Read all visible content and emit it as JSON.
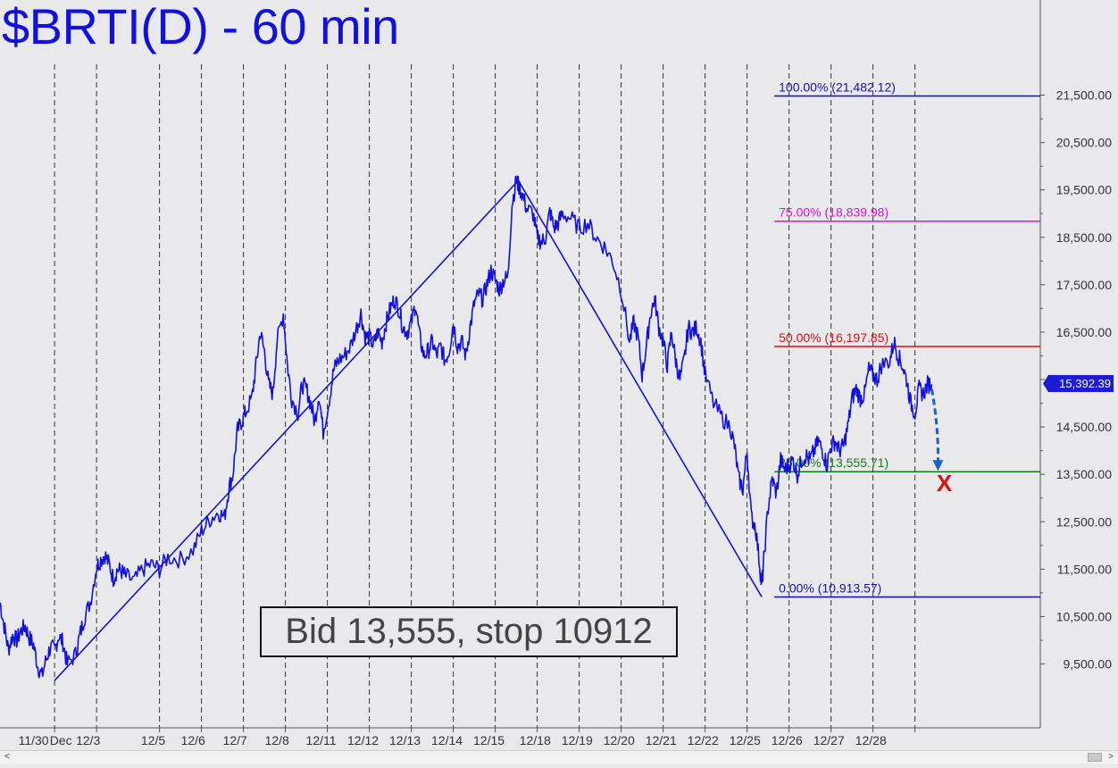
{
  "title": "$BRTI(D) - 60 min",
  "annotation_box": "Bid 13,555, stop 10912",
  "last_price_label": "15,392.39",
  "scroll": {
    "left_arrow": "<",
    "right_arrow": ">"
  },
  "colors": {
    "background": "#e9e9ec",
    "price": "#1010e0",
    "fib_100": "#1010c0",
    "fib_75": "#e010e0",
    "fib_50": "#e01010",
    "fib_25": "#108010",
    "fib_0": "#1010c0",
    "target_x": "#e01010"
  },
  "chart_data": {
    "type": "line",
    "title": "$BRTI(D) - 60 min",
    "ylim": [
      8500,
      22500
    ],
    "y_ticks": [
      9500,
      10500,
      11500,
      12500,
      13500,
      14500,
      15500,
      16500,
      17500,
      18500,
      19500,
      20500,
      21500
    ],
    "y_tick_labels": [
      "9,500.00",
      "10,500.00",
      "11,500.00",
      "12,500.00",
      "13,500.00",
      "14,500.00",
      "15,500.00",
      "16,500.00",
      "17,500.00",
      "18,500.00",
      "19,500.00",
      "20,500.00",
      "21,500.00"
    ],
    "x_labels": [
      "11/30",
      "Dec",
      "12/3",
      "12/5",
      "12/6",
      "12/7",
      "12/8",
      "12/11",
      "12/12",
      "12/13",
      "12/14",
      "12/15",
      "12/18",
      "12/19",
      "12/20",
      "12/21",
      "12/22",
      "12/25",
      "12/26",
      "12/27",
      "12/28"
    ],
    "x_label_pos": [
      0.8,
      1.45,
      2.1,
      3.65,
      4.6,
      5.6,
      6.6,
      7.65,
      8.65,
      9.65,
      10.65,
      11.65,
      12.75,
      13.75,
      14.75,
      15.75,
      16.75,
      17.75,
      18.75,
      19.75,
      20.75
    ],
    "grid_x": [
      1.3,
      2.3,
      3.8,
      4.8,
      5.8,
      6.8,
      7.8,
      8.8,
      9.8,
      10.8,
      11.8,
      12.8,
      13.8,
      14.8,
      15.8,
      16.8,
      17.8,
      18.8,
      19.8,
      20.8,
      21.8
    ],
    "x_range": [
      0,
      24.9
    ],
    "grid": "vertical dashed",
    "series": [
      {
        "values": [
          [
            0.0,
            10800
          ],
          [
            0.1,
            10300
          ],
          [
            0.2,
            9800
          ],
          [
            0.3,
            10100
          ],
          [
            0.4,
            10000
          ],
          [
            0.5,
            10200
          ],
          [
            0.6,
            10300
          ],
          [
            0.7,
            10050
          ],
          [
            0.8,
            9900
          ],
          [
            0.9,
            9450
          ],
          [
            1.0,
            9250
          ],
          [
            1.1,
            9600
          ],
          [
            1.2,
            9850
          ],
          [
            1.3,
            9800
          ],
          [
            1.4,
            10100
          ],
          [
            1.5,
            9950
          ],
          [
            1.6,
            9500
          ],
          [
            1.8,
            9700
          ],
          [
            1.9,
            10100
          ],
          [
            2.0,
            10450
          ],
          [
            2.15,
            10800
          ],
          [
            2.3,
            11550
          ],
          [
            2.4,
            11700
          ],
          [
            2.5,
            11800
          ],
          [
            2.6,
            11600
          ],
          [
            2.7,
            11300
          ],
          [
            2.8,
            11500
          ],
          [
            2.9,
            11450
          ],
          [
            3.0,
            11350
          ],
          [
            3.2,
            11250
          ],
          [
            3.4,
            11500
          ],
          [
            3.6,
            11600
          ],
          [
            3.8,
            11500
          ],
          [
            4.0,
            11750
          ],
          [
            4.3,
            11700
          ],
          [
            4.6,
            11900
          ],
          [
            4.8,
            12300
          ],
          [
            5.0,
            12550
          ],
          [
            5.2,
            12700
          ],
          [
            5.35,
            12600
          ],
          [
            5.45,
            13200
          ],
          [
            5.55,
            13500
          ],
          [
            5.65,
            14400
          ],
          [
            5.75,
            14600
          ],
          [
            5.85,
            14800
          ],
          [
            6.0,
            15100
          ],
          [
            6.1,
            15800
          ],
          [
            6.2,
            16500
          ],
          [
            6.3,
            16100
          ],
          [
            6.4,
            15400
          ],
          [
            6.5,
            15200
          ],
          [
            6.6,
            16300
          ],
          [
            6.75,
            16900
          ],
          [
            6.85,
            15800
          ],
          [
            6.95,
            15100
          ],
          [
            7.1,
            14800
          ],
          [
            7.2,
            15400
          ],
          [
            7.3,
            15300
          ],
          [
            7.4,
            15000
          ],
          [
            7.5,
            14600
          ],
          [
            7.6,
            15200
          ],
          [
            7.7,
            14400
          ],
          [
            7.85,
            15100
          ],
          [
            7.95,
            15700
          ],
          [
            8.05,
            15900
          ],
          [
            8.2,
            16000
          ],
          [
            8.35,
            16200
          ],
          [
            8.5,
            16600
          ],
          [
            8.6,
            16900
          ],
          [
            8.7,
            16400
          ],
          [
            8.8,
            16400
          ],
          [
            8.9,
            16200
          ],
          [
            9.0,
            16500
          ],
          [
            9.1,
            16300
          ],
          [
            9.2,
            16700
          ],
          [
            9.3,
            17000
          ],
          [
            9.4,
            17200
          ],
          [
            9.5,
            17000
          ],
          [
            9.6,
            16600
          ],
          [
            9.7,
            16500
          ],
          [
            9.8,
            16700
          ],
          [
            9.9,
            17100
          ],
          [
            10.0,
            16400
          ],
          [
            10.1,
            16000
          ],
          [
            10.2,
            16100
          ],
          [
            10.3,
            16300
          ],
          [
            10.4,
            16000
          ],
          [
            10.5,
            16200
          ],
          [
            10.6,
            15900
          ],
          [
            10.7,
            16100
          ],
          [
            10.8,
            16700
          ],
          [
            10.9,
            16200
          ],
          [
            11.0,
            16300
          ],
          [
            11.1,
            16000
          ],
          [
            11.2,
            16600
          ],
          [
            11.3,
            17100
          ],
          [
            11.4,
            17300
          ],
          [
            11.5,
            17200
          ],
          [
            11.6,
            17500
          ],
          [
            11.7,
            17800
          ],
          [
            11.8,
            17600
          ],
          [
            11.9,
            17400
          ],
          [
            12.0,
            17600
          ],
          [
            12.1,
            17650
          ],
          [
            12.2,
            19200
          ],
          [
            12.3,
            19700
          ],
          [
            12.35,
            19600
          ],
          [
            12.45,
            19400
          ],
          [
            12.55,
            19100
          ],
          [
            12.7,
            19000
          ],
          [
            12.8,
            18500
          ],
          [
            12.9,
            18400
          ],
          [
            13.0,
            18500
          ],
          [
            13.1,
            19050
          ],
          [
            13.2,
            18700
          ],
          [
            13.3,
            18800
          ],
          [
            13.4,
            19000
          ],
          [
            13.6,
            18900
          ],
          [
            13.8,
            18700
          ],
          [
            14.0,
            18800
          ],
          [
            14.2,
            18500
          ],
          [
            14.4,
            18300
          ],
          [
            14.6,
            18000
          ],
          [
            14.8,
            17400
          ],
          [
            15.0,
            16300
          ],
          [
            15.1,
            16700
          ],
          [
            15.2,
            16400
          ],
          [
            15.3,
            15600
          ],
          [
            15.4,
            16200
          ],
          [
            15.5,
            16900
          ],
          [
            15.6,
            17200
          ],
          [
            15.7,
            16600
          ],
          [
            15.8,
            16300
          ],
          [
            15.9,
            15800
          ],
          [
            16.0,
            16500
          ],
          [
            16.1,
            15900
          ],
          [
            16.2,
            15500
          ],
          [
            16.3,
            15900
          ],
          [
            16.4,
            16600
          ],
          [
            16.5,
            16500
          ],
          [
            16.6,
            16600
          ],
          [
            16.7,
            16300
          ],
          [
            16.8,
            15600
          ],
          [
            17.0,
            15000
          ],
          [
            17.2,
            14700
          ],
          [
            17.4,
            14500
          ],
          [
            17.5,
            14100
          ],
          [
            17.6,
            13400
          ],
          [
            17.7,
            13200
          ],
          [
            17.8,
            14000
          ],
          [
            17.9,
            12600
          ],
          [
            18.0,
            12400
          ],
          [
            18.1,
            11600
          ],
          [
            18.15,
            11100
          ],
          [
            18.2,
            11700
          ],
          [
            18.3,
            12800
          ],
          [
            18.4,
            13400
          ],
          [
            18.5,
            13100
          ],
          [
            18.6,
            13800
          ],
          [
            18.7,
            13600
          ],
          [
            18.8,
            13700
          ],
          [
            18.9,
            13800
          ],
          [
            19.0,
            13500
          ],
          [
            19.1,
            13800
          ],
          [
            19.2,
            13900
          ],
          [
            19.3,
            13800
          ],
          [
            19.4,
            14000
          ],
          [
            19.5,
            14200
          ],
          [
            19.6,
            14000
          ],
          [
            19.7,
            13700
          ],
          [
            19.8,
            14100
          ],
          [
            19.9,
            14200
          ],
          [
            20.0,
            14000
          ],
          [
            20.1,
            14100
          ],
          [
            20.2,
            14500
          ],
          [
            20.3,
            15100
          ],
          [
            20.4,
            15300
          ],
          [
            20.5,
            15100
          ],
          [
            20.6,
            15200
          ],
          [
            20.7,
            15700
          ],
          [
            20.8,
            15600
          ],
          [
            20.9,
            15500
          ],
          [
            21.0,
            15800
          ],
          [
            21.2,
            15900
          ],
          [
            21.3,
            16300
          ],
          [
            21.4,
            16000
          ],
          [
            21.5,
            15800
          ],
          [
            21.6,
            15500
          ],
          [
            21.7,
            15000
          ],
          [
            21.8,
            14800
          ],
          [
            21.9,
            15300
          ],
          [
            22.0,
            15200
          ],
          [
            22.1,
            15400
          ],
          [
            22.2,
            15400
          ]
        ]
      }
    ],
    "trendlines": [
      {
        "points": [
          [
            1.3,
            9150
          ],
          [
            12.35,
            19700
          ]
        ]
      },
      {
        "points": [
          [
            12.35,
            19700
          ],
          [
            18.15,
            10913.57
          ]
        ]
      }
    ],
    "horizontal_levels": [
      {
        "label": "100.00% (21,482.12)",
        "value": 21482.12,
        "x_start": 18.45,
        "color": "#1010c0"
      },
      {
        "label": "75.00% (18,839.98)",
        "value": 18839.98,
        "x_start": 18.45,
        "color": "#e010e0"
      },
      {
        "label": "50.00% (16,197.85)",
        "value": 16197.85,
        "x_start": 18.45,
        "color": "#e01010"
      },
      {
        "label": "25.00% (13,555.71)",
        "value": 13555.71,
        "x_start": 18.45,
        "color": "#108010"
      },
      {
        "label": "0.00% (10,913.57)",
        "value": 10913.57,
        "x_start": 18.45,
        "color": "#1010c0"
      }
    ],
    "projection": {
      "from": [
        22.2,
        15300
      ],
      "to": [
        22.35,
        13650
      ],
      "style": "dashed arrow"
    },
    "target_marker": {
      "label": "X",
      "x": 22.5,
      "y": 13300
    }
  }
}
